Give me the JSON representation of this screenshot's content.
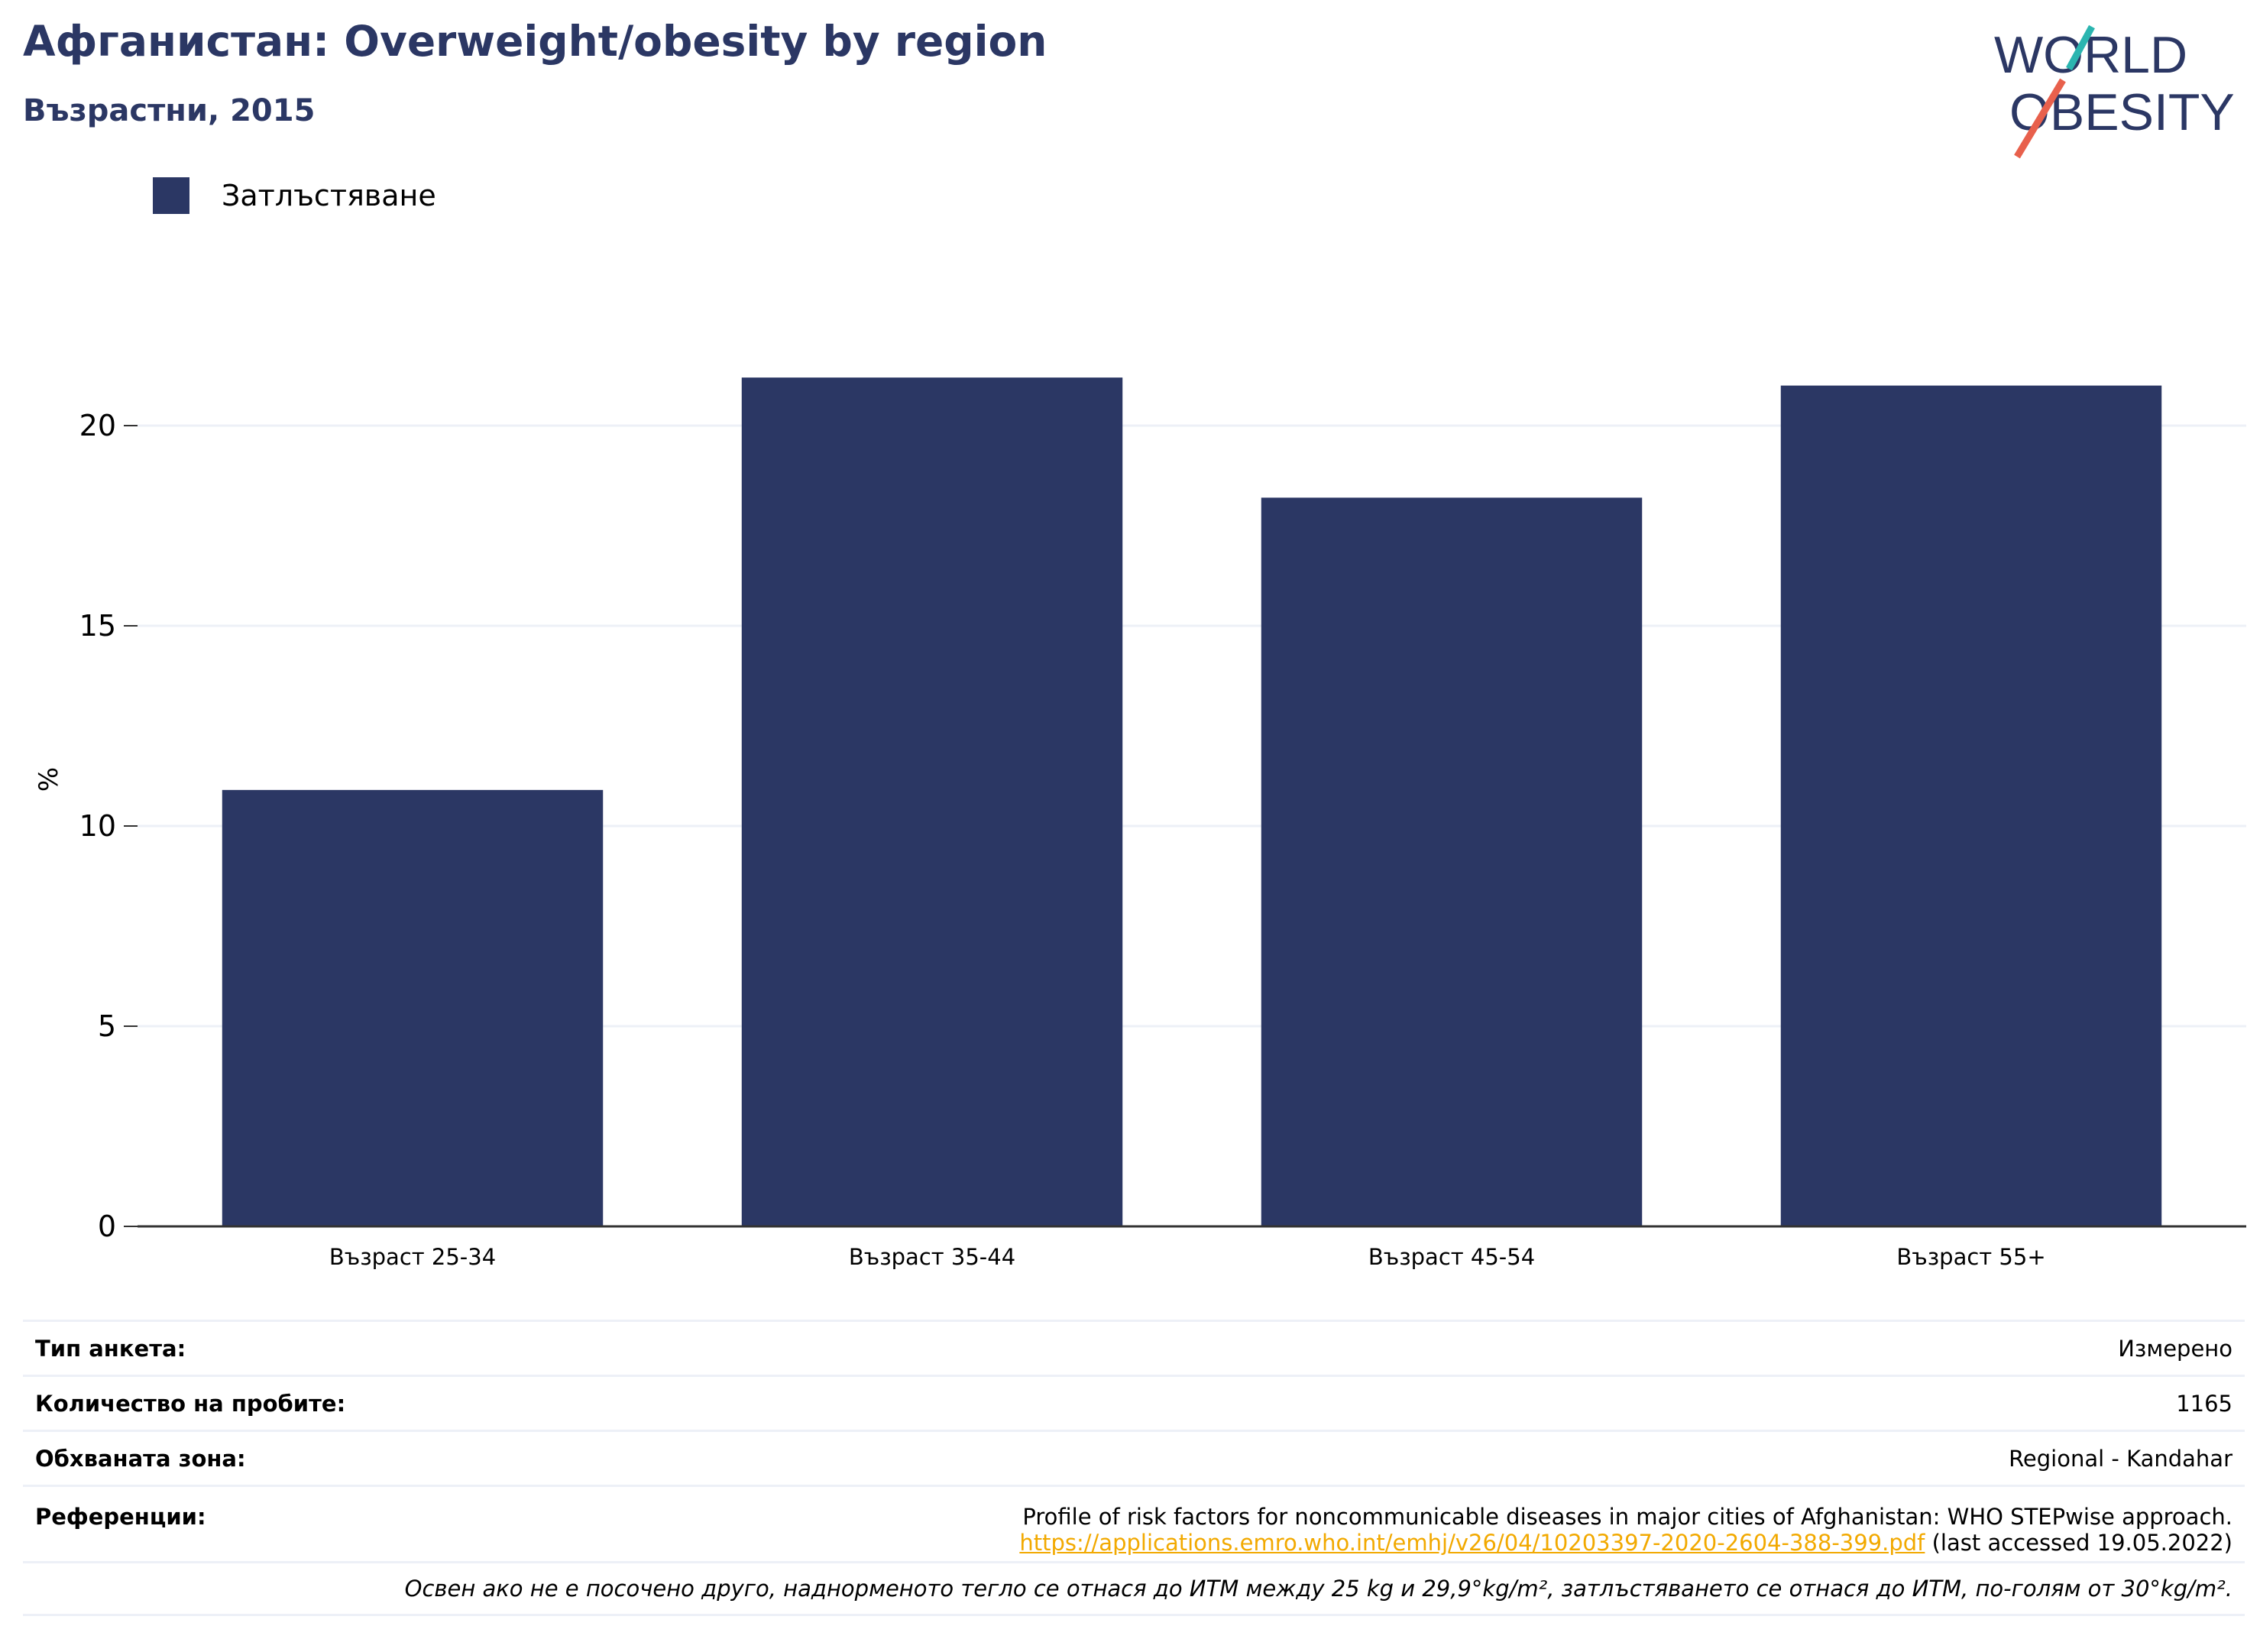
{
  "header": {
    "title": "Афганистан: Overweight/obesity by region",
    "subtitle": "Възрастни, 2015"
  },
  "logo": {
    "line1": "WORLD",
    "line2": "OBESITY"
  },
  "colors": {
    "bar": "#2b3764",
    "title": "#2b3764",
    "grid": "#edf0f7",
    "link": "#f2a900",
    "logo_teal": "#2bb5b0",
    "logo_red": "#e8604c"
  },
  "chart_data": {
    "type": "bar",
    "ylabel": "%",
    "ylim": [
      0,
      23
    ],
    "yticks": [
      0,
      5,
      10,
      15,
      20
    ],
    "categories": [
      "Възраст 25-34",
      "Възраст 35-44",
      "Възраст 45-54",
      "Възраст 55+"
    ],
    "series": [
      {
        "name": "Затлъстяване",
        "values": [
          10.9,
          21.2,
          18.2,
          21.0
        ]
      }
    ],
    "legend": "top-left",
    "grid": true
  },
  "meta": {
    "survey_type_label": "Тип анкета:",
    "survey_type_value": "Измерено",
    "sample_size_label": "Количество на пробите:",
    "sample_size_value": "1165",
    "area_label": "Обхваната зона:",
    "area_value": "Regional - Kandahar",
    "references_label": "Референции:",
    "references_text": "Profile of risk factors for noncommunicable diseases in major cities of Afghanistan: WHO STEPwise approach.",
    "references_link": "https://applications.emro.who.int/emhj/v26/04/10203397-2020-2604-388-399.pdf",
    "references_accessed": "(last accessed 19.05.2022)",
    "note": "Освен ако не е посочено друго, наднорменото тегло се отнася до ИТМ между 25 kg и 29,9°kg/m², затлъстяването се отнася до ИТМ, по-голям от 30°kg/m²."
  }
}
